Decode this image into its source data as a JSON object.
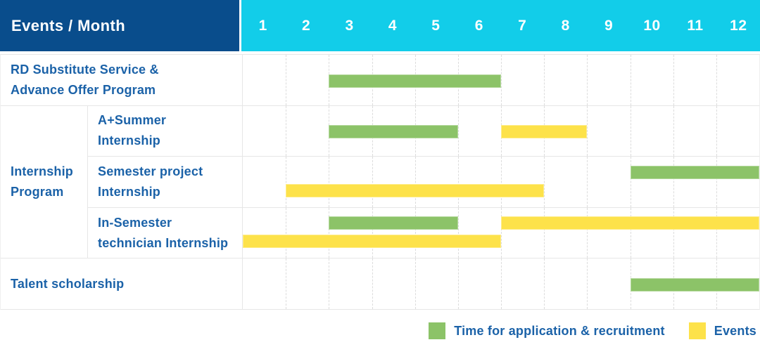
{
  "header": {
    "label": "Events / Month"
  },
  "colors": {
    "navy": "#094d8c",
    "cyan": "#12cde9",
    "green": "#8cc368",
    "yellow": "#fde24a",
    "text_blue": "#1b62a8",
    "grid_line": "#e6e6e6"
  },
  "chart_data": {
    "type": "gantt",
    "title": "Events / Month",
    "months": [
      "1",
      "2",
      "3",
      "4",
      "5",
      "6",
      "7",
      "8",
      "9",
      "10",
      "11",
      "12"
    ],
    "x_range": [
      1,
      12
    ],
    "grid": "dashed-vertical",
    "legend_position": "bottom-right",
    "bar_types": {
      "application": {
        "label": "Time for application & recruitment",
        "color": "#8cc368"
      },
      "event": {
        "label": "Events",
        "color": "#fde24a"
      }
    },
    "rows": [
      {
        "label": "RD Substitute Service & Advance Offer Program",
        "label_lines": [
          "RD Substitute Service &",
          "Advance Offer Program"
        ],
        "full_width": true,
        "lanes": [
          [
            {
              "type": "application",
              "start": 3,
              "end": 6
            }
          ]
        ]
      },
      {
        "group": {
          "label": "Internship Program",
          "label_lines": [
            "Internship",
            "Program"
          ],
          "span": 3
        },
        "label": "A+Summer Internship",
        "label_lines": [
          "A+Summer",
          "Internship"
        ],
        "full_width": false,
        "lanes": [
          [
            {
              "type": "application",
              "start": 3,
              "end": 5
            },
            {
              "type": "event",
              "start": 7,
              "end": 8
            }
          ]
        ]
      },
      {
        "label": "Semester project Internship",
        "label_lines": [
          "Semester project",
          "Internship"
        ],
        "full_width": false,
        "lanes": [
          [
            {
              "type": "application",
              "start": 10,
              "end": 12
            }
          ],
          [
            {
              "type": "event",
              "start": 2,
              "end": 7
            }
          ]
        ]
      },
      {
        "label": "In-Semester technician Internship",
        "label_lines": [
          "In-Semester",
          "technician Internship"
        ],
        "full_width": false,
        "lanes": [
          [
            {
              "type": "application",
              "start": 3,
              "end": 5
            },
            {
              "type": "event",
              "start": 7,
              "end": 12
            }
          ],
          [
            {
              "type": "event",
              "start": 1,
              "end": 6
            }
          ]
        ]
      },
      {
        "label": "Talent scholarship",
        "label_lines": [
          "Talent scholarship"
        ],
        "full_width": true,
        "lanes": [
          [
            {
              "type": "application",
              "start": 10,
              "end": 12
            }
          ]
        ]
      }
    ]
  }
}
